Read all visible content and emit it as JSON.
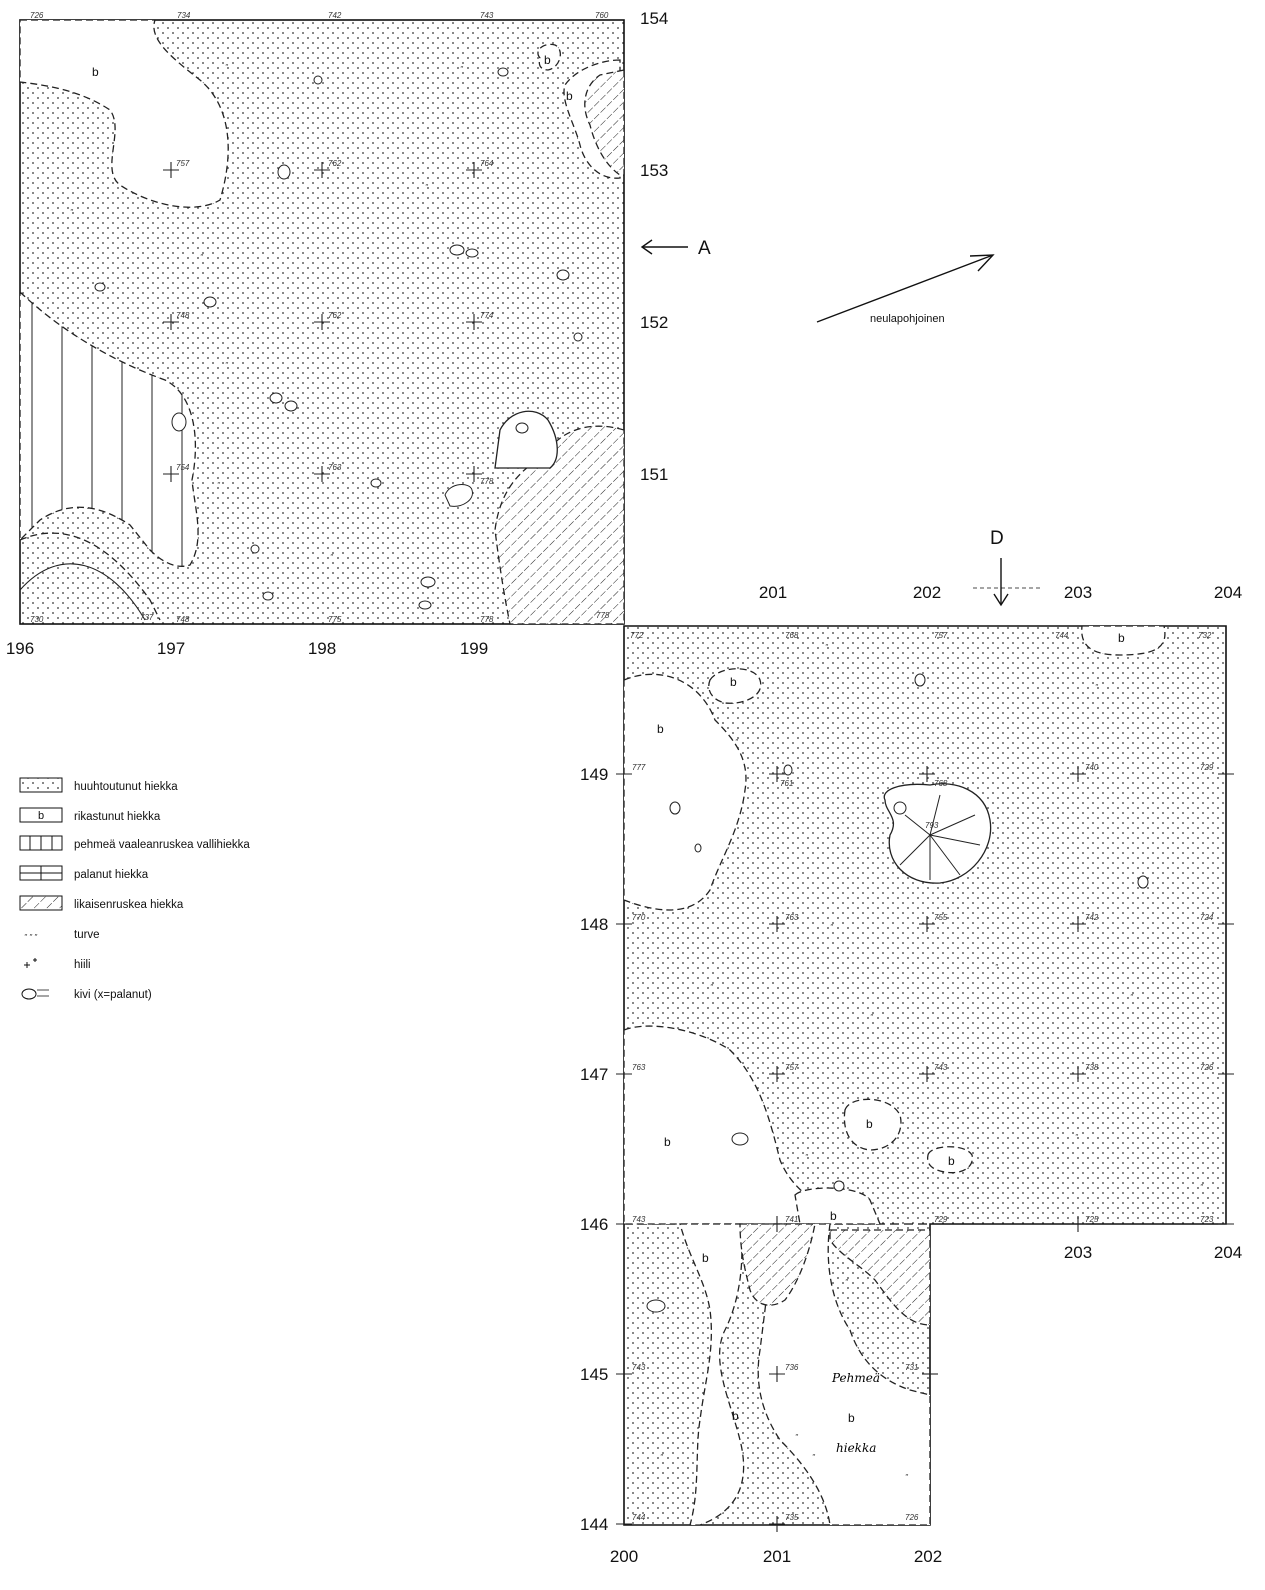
{
  "axes": {
    "north_x": [
      "196",
      "197",
      "198",
      "199"
    ],
    "north_y": [
      "154",
      "153",
      "152",
      "151"
    ],
    "south_x_top": [
      "201",
      "202",
      "203",
      "204"
    ],
    "south_y": [
      "149",
      "148",
      "147",
      "146",
      "145",
      "144"
    ],
    "south_x_mid": [
      "203",
      "204"
    ],
    "south_x_bottom": [
      "200",
      "201",
      "202"
    ]
  },
  "markers": {
    "section_a": "A",
    "section_d": "D",
    "north_arrow_label": "neulapohjoinen"
  },
  "zone_label": "b",
  "handwritten": {
    "word1": "Pehmeä",
    "word2": "hiekka"
  },
  "legend": [
    {
      "symbol": "dots",
      "label": "huuhtoutunut hiekka"
    },
    {
      "symbol": "b",
      "label": "rikastunut hiekka"
    },
    {
      "symbol": "vertical",
      "label": "pehmeä vaaleanruskea vallihiekka"
    },
    {
      "symbol": "grid",
      "label": "palanut hiekka"
    },
    {
      "symbol": "hatch",
      "label": "likaisenruskea hiekka"
    },
    {
      "symbol": "turve",
      "label": "turve"
    },
    {
      "symbol": "hiili",
      "label": "hiili"
    },
    {
      "symbol": "kivi",
      "label": "kivi (x=palanut)"
    }
  ],
  "colors": {
    "ink": "#111111",
    "paper": "#ffffff"
  }
}
